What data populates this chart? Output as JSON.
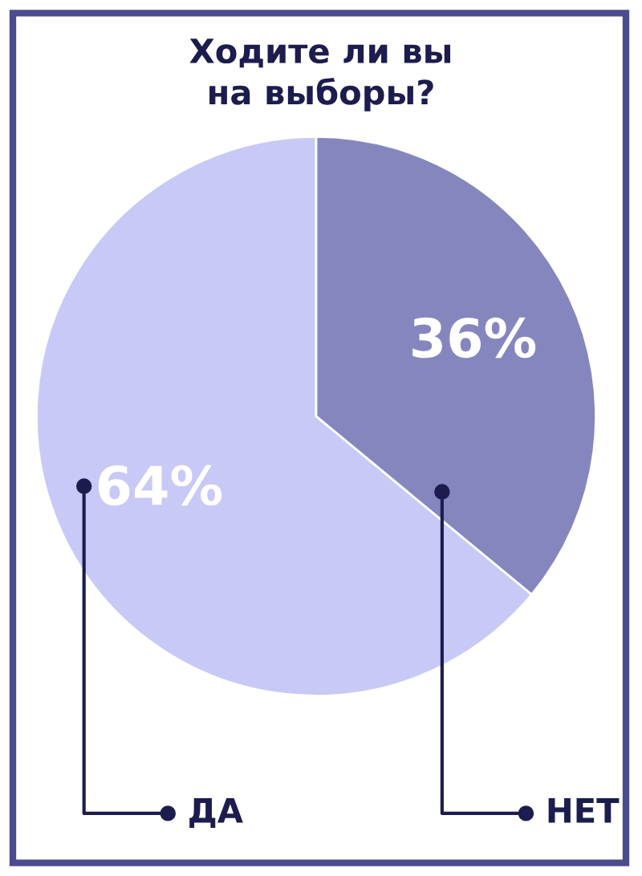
{
  "chart_data": {
    "type": "pie",
    "title": "Ходите ли вы\nна выборы?",
    "categories": [
      "ДА",
      "НЕТ"
    ],
    "values": [
      64,
      36
    ],
    "colors": [
      "#c9c9f7",
      "#8686bf"
    ],
    "value_labels": [
      "64%",
      "36%"
    ]
  }
}
